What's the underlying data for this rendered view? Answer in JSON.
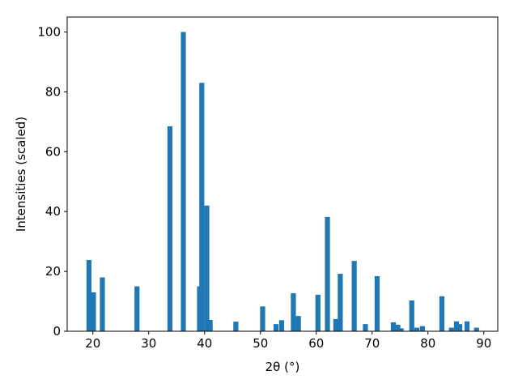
{
  "chart_data": {
    "type": "bar",
    "xlabel": "2θ (°)",
    "ylabel": "Intensities (scaled)",
    "x": [
      19.3,
      20.1,
      21.7,
      27.9,
      33.8,
      36.2,
      39.1,
      39.5,
      40.4,
      41.0,
      45.6,
      50.4,
      52.8,
      53.8,
      55.9,
      56.8,
      60.3,
      62.0,
      63.5,
      64.3,
      66.8,
      68.8,
      70.9,
      73.8,
      74.6,
      75.2,
      77.1,
      78.0,
      79.0,
      82.5,
      84.2,
      85.1,
      85.7,
      87.0,
      88.7
    ],
    "values": [
      23.8,
      13,
      18,
      15,
      68.5,
      100,
      15,
      83,
      42,
      3.8,
      3.2,
      8.3,
      2.4,
      3.7,
      12.7,
      5.1,
      12.2,
      38.2,
      4.1,
      19.2,
      23.5,
      2.4,
      18.4,
      3.0,
      2.2,
      1.0,
      10.3,
      1.2,
      1.7,
      11.7,
      1.2,
      3.3,
      2.4,
      3.3,
      1.2
    ],
    "bar_width": 0.9,
    "color": "#1f77b4",
    "xlim": [
      15.4,
      92.5
    ],
    "xticks": [
      20,
      30,
      40,
      50,
      60,
      70,
      80,
      90
    ],
    "ylim": [
      0,
      105
    ],
    "yticks": [
      0,
      20,
      40,
      60,
      80,
      100
    ]
  }
}
